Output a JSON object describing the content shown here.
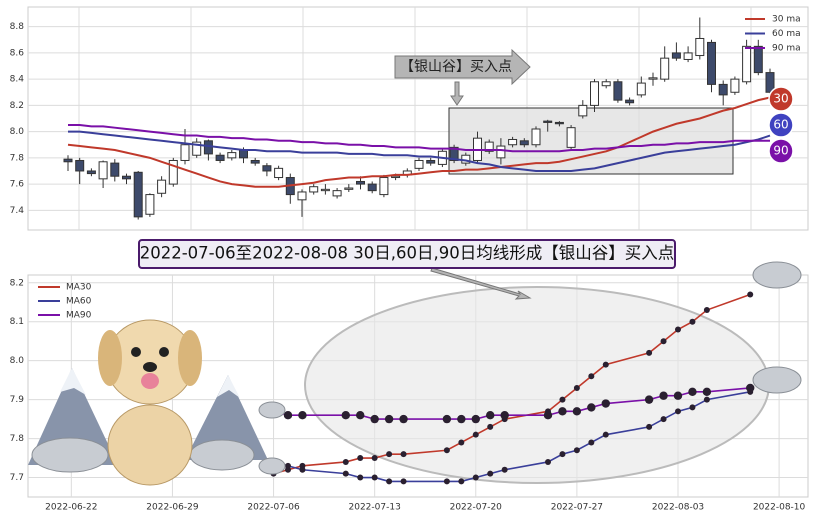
{
  "chart_data": [
    {
      "type": "candlestick",
      "ylim": [
        7.25,
        8.95
      ],
      "yticks": [
        7.4,
        7.6,
        7.8,
        {
          "value": 8,
          "label": "8.0"
        },
        8.2,
        8.4,
        8.6,
        8.8
      ],
      "grid": true,
      "up_color": "#ffffff",
      "down_color": "#3d4a6b",
      "open": [
        7.79,
        7.78,
        7.7,
        7.64,
        7.76,
        7.66,
        7.69,
        7.37,
        7.53,
        7.6,
        7.78,
        7.82,
        7.93,
        7.82,
        7.8,
        7.86,
        7.78,
        7.74,
        7.65,
        7.65,
        7.48,
        7.54,
        7.55,
        7.51,
        7.56,
        7.62,
        7.6,
        7.52,
        7.65,
        7.67,
        7.72,
        7.78,
        7.75,
        7.88,
        7.76,
        7.78,
        7.85,
        7.8,
        7.9,
        7.93,
        7.9,
        8.08,
        8.07,
        7.88,
        8.12,
        8.2,
        8.35,
        8.38,
        8.24,
        8.28,
        8.4,
        8.4,
        8.6,
        8.55,
        8.58,
        8.68,
        8.36,
        8.3,
        8.38,
        8.65,
        8.45
      ],
      "close": [
        7.77,
        7.7,
        7.68,
        7.77,
        7.66,
        7.64,
        7.35,
        7.52,
        7.63,
        7.78,
        7.9,
        7.92,
        7.83,
        7.78,
        7.84,
        7.8,
        7.76,
        7.7,
        7.72,
        7.52,
        7.54,
        7.58,
        7.56,
        7.55,
        7.57,
        7.6,
        7.55,
        7.65,
        7.66,
        7.7,
        7.78,
        7.76,
        7.85,
        7.78,
        7.82,
        7.95,
        7.92,
        7.89,
        7.94,
        7.9,
        8.02,
        8.07,
        8.06,
        8.03,
        8.2,
        8.38,
        8.38,
        8.24,
        8.22,
        8.37,
        8.41,
        8.56,
        8.56,
        8.6,
        8.71,
        8.36,
        8.28,
        8.4,
        8.65,
        8.45,
        8.3
      ],
      "high": [
        7.82,
        7.8,
        7.72,
        7.78,
        7.79,
        7.68,
        7.7,
        7.53,
        7.66,
        7.8,
        8.02,
        7.95,
        7.94,
        7.84,
        7.86,
        7.88,
        7.8,
        7.76,
        7.74,
        7.68,
        7.56,
        7.6,
        7.6,
        7.57,
        7.6,
        7.66,
        7.62,
        7.67,
        7.68,
        7.72,
        7.8,
        7.8,
        7.87,
        7.9,
        7.84,
        8.0,
        7.94,
        7.95,
        7.96,
        7.95,
        8.04,
        8.09,
        8.08,
        8.05,
        8.24,
        8.4,
        8.4,
        8.4,
        8.26,
        8.42,
        8.45,
        8.65,
        8.68,
        8.65,
        8.87,
        8.7,
        8.39,
        8.42,
        8.7,
        8.7,
        8.48
      ],
      "low": [
        7.7,
        7.6,
        7.66,
        7.57,
        7.62,
        7.6,
        7.33,
        7.35,
        7.5,
        7.58,
        7.75,
        7.8,
        7.78,
        7.76,
        7.78,
        7.76,
        7.74,
        7.66,
        7.63,
        7.45,
        7.35,
        7.52,
        7.52,
        7.49,
        7.54,
        7.56,
        7.53,
        7.5,
        7.63,
        7.65,
        7.7,
        7.74,
        7.73,
        7.76,
        7.74,
        7.76,
        7.83,
        7.75,
        7.88,
        7.88,
        7.88,
        8.0,
        8.04,
        7.86,
        8.1,
        8.15,
        8.33,
        8.22,
        8.2,
        8.26,
        8.35,
        8.38,
        8.54,
        8.53,
        8.55,
        8.3,
        8.2,
        8.28,
        8.36,
        8.43,
        8.25
      ],
      "series": [
        {
          "name": "30 ma",
          "color": "#c0392b",
          "values": [
            7.9,
            7.89,
            7.88,
            7.87,
            7.86,
            7.84,
            7.82,
            7.8,
            7.77,
            7.74,
            7.71,
            7.68,
            7.65,
            7.62,
            7.6,
            7.59,
            7.58,
            7.58,
            7.58,
            7.59,
            7.6,
            7.61,
            7.63,
            7.64,
            7.65,
            7.65,
            7.66,
            7.66,
            7.67,
            7.67,
            7.68,
            7.69,
            7.7,
            7.7,
            7.71,
            7.71,
            7.72,
            7.73,
            7.74,
            7.75,
            7.76,
            7.76,
            7.77,
            7.79,
            7.81,
            7.83,
            7.85,
            7.88,
            7.92,
            7.96,
            8.0,
            8.03,
            8.06,
            8.08,
            8.1,
            8.13,
            8.16,
            8.18,
            8.21,
            8.24,
            8.26
          ]
        },
        {
          "name": "60 ma",
          "color": "#3a3f9a",
          "values": [
            8.0,
            8.0,
            7.99,
            7.98,
            7.97,
            7.96,
            7.95,
            7.94,
            7.93,
            7.92,
            7.91,
            7.9,
            7.89,
            7.88,
            7.87,
            7.86,
            7.86,
            7.85,
            7.85,
            7.85,
            7.84,
            7.84,
            7.84,
            7.84,
            7.83,
            7.83,
            7.83,
            7.82,
            7.82,
            7.82,
            7.81,
            7.81,
            7.8,
            7.79,
            7.78,
            7.76,
            7.75,
            7.73,
            7.72,
            7.71,
            7.7,
            7.7,
            7.7,
            7.7,
            7.71,
            7.72,
            7.74,
            7.76,
            7.78,
            7.8,
            7.82,
            7.84,
            7.85,
            7.86,
            7.87,
            7.88,
            7.89,
            7.9,
            7.92,
            7.94,
            7.97
          ]
        },
        {
          "name": "90 ma",
          "color": "#7a10a8",
          "values": [
            8.05,
            8.05,
            8.04,
            8.04,
            8.03,
            8.02,
            8.01,
            8.0,
            7.99,
            7.98,
            7.97,
            7.97,
            7.96,
            7.96,
            7.95,
            7.95,
            7.94,
            7.94,
            7.93,
            7.93,
            7.92,
            7.92,
            7.91,
            7.91,
            7.9,
            7.9,
            7.89,
            7.89,
            7.88,
            7.88,
            7.88,
            7.87,
            7.87,
            7.87,
            7.86,
            7.86,
            7.86,
            7.86,
            7.85,
            7.85,
            7.85,
            7.85,
            7.85,
            7.86,
            7.86,
            7.87,
            7.87,
            7.88,
            7.89,
            7.89,
            7.9,
            7.9,
            7.91,
            7.91,
            7.92,
            7.92,
            7.92,
            7.93,
            7.93,
            7.93,
            7.93
          ]
        }
      ],
      "legend": "upper right",
      "annotation": "【银山谷】买入点",
      "badges": [
        {
          "text": "30",
          "color": "#c0392b"
        },
        {
          "text": "60",
          "color": "#3f42c0"
        },
        {
          "text": "90",
          "color": "#7a10a8"
        }
      ]
    },
    {
      "type": "line",
      "title": "2022-07-06至2022-08-08 30日,60日,90日均线形成【银山谷】买入点",
      "x": [
        "2022-07-06",
        "2022-07-07",
        "2022-07-08",
        "2022-07-11",
        "2022-07-12",
        "2022-07-13",
        "2022-07-14",
        "2022-07-15",
        "2022-07-18",
        "2022-07-19",
        "2022-07-20",
        "2022-07-21",
        "2022-07-22",
        "2022-07-25",
        "2022-07-26",
        "2022-07-27",
        "2022-07-28",
        "2022-07-29",
        "2022-08-01",
        "2022-08-02",
        "2022-08-03",
        "2022-08-04",
        "2022-08-05",
        "2022-08-08"
      ],
      "xlim": [
        "2022-06-19",
        "2022-08-12"
      ],
      "xticks": [
        "2022-06-22",
        "2022-06-29",
        "2022-07-06",
        "2022-07-13",
        "2022-07-20",
        "2022-07-27",
        "2022-08-03",
        "2022-08-10"
      ],
      "ylim": [
        7.65,
        8.22
      ],
      "yticks": [
        7.7,
        7.8,
        7.9,
        {
          "value": 8,
          "label": "8.0"
        },
        8.1,
        8.2
      ],
      "grid": true,
      "legend": "upper left",
      "series": [
        {
          "name": "MA30",
          "color": "#c0392b",
          "values": [
            7.71,
            7.72,
            7.73,
            7.74,
            7.75,
            7.75,
            7.76,
            7.76,
            7.77,
            7.79,
            7.81,
            7.83,
            7.85,
            7.87,
            7.9,
            7.93,
            7.96,
            7.99,
            8.02,
            8.05,
            8.08,
            8.1,
            8.13,
            8.17
          ]
        },
        {
          "name": "MA60",
          "color": "#3a3f9a",
          "values": [
            7.74,
            7.73,
            7.72,
            7.71,
            7.7,
            7.7,
            7.69,
            7.69,
            7.69,
            7.69,
            7.7,
            7.71,
            7.72,
            7.74,
            7.76,
            7.77,
            7.79,
            7.81,
            7.83,
            7.85,
            7.87,
            7.88,
            7.9,
            7.92
          ]
        },
        {
          "name": "MA90",
          "color": "#7a10a8",
          "values": [
            7.87,
            7.86,
            7.86,
            7.86,
            7.86,
            7.85,
            7.85,
            7.85,
            7.85,
            7.85,
            7.85,
            7.86,
            7.86,
            7.86,
            7.87,
            7.87,
            7.88,
            7.89,
            7.9,
            7.91,
            7.91,
            7.92,
            7.92,
            7.93
          ]
        }
      ]
    }
  ]
}
